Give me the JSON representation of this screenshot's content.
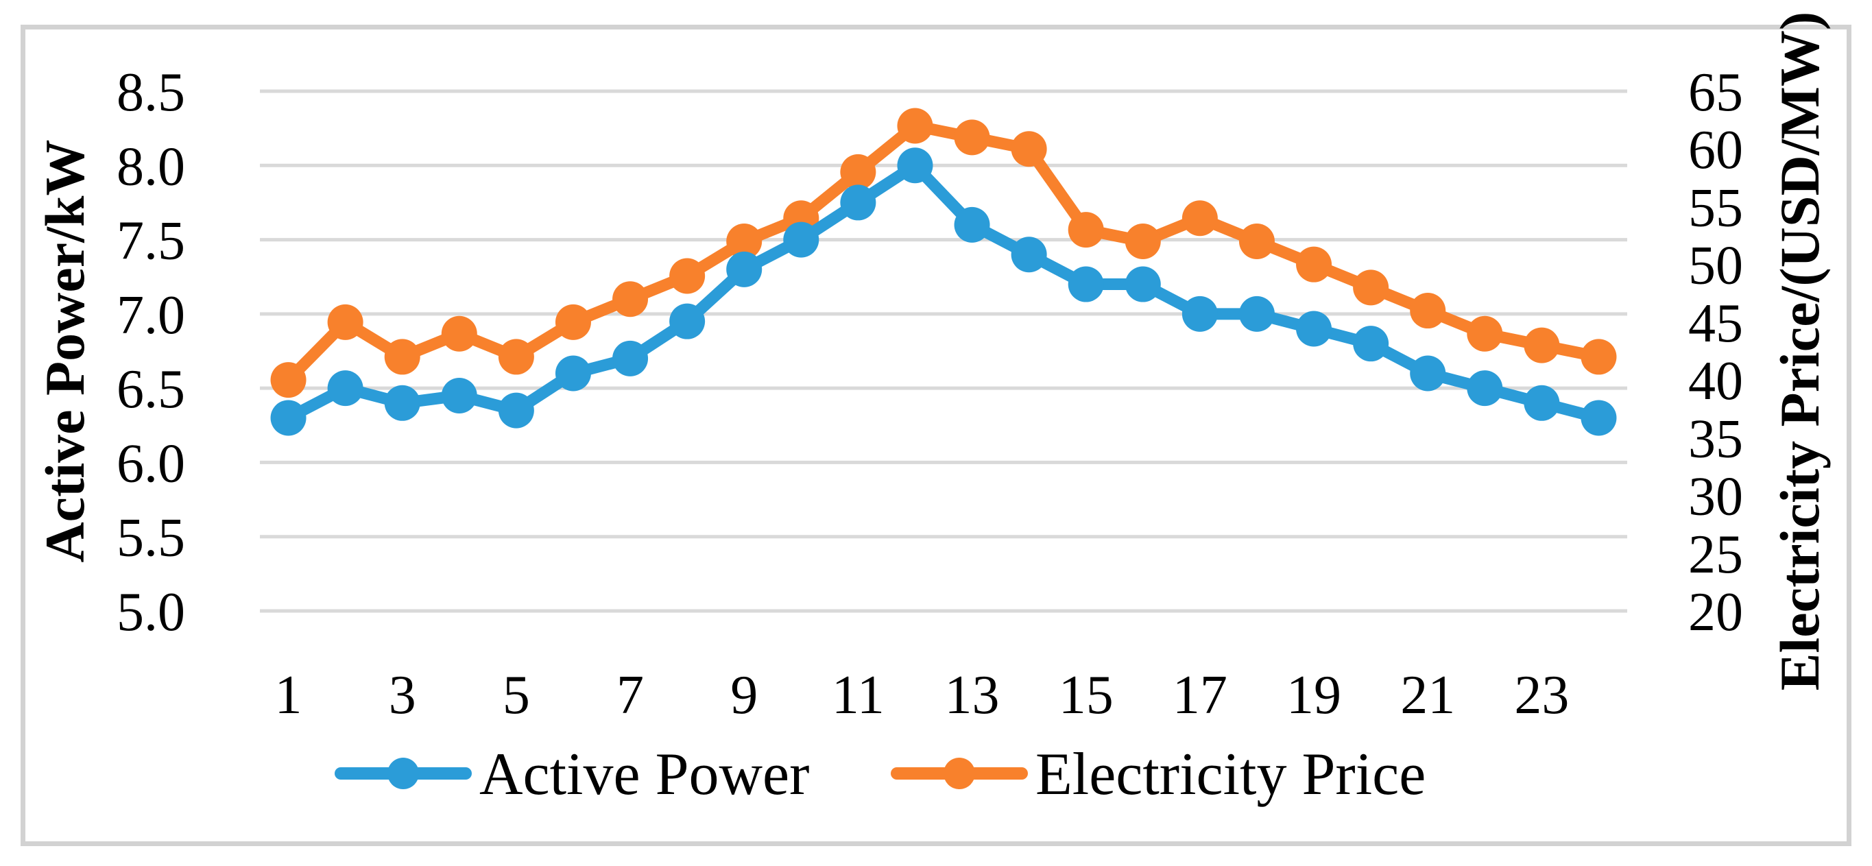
{
  "chart_data": {
    "type": "line",
    "title": "",
    "x": [
      1,
      2,
      3,
      4,
      5,
      6,
      7,
      8,
      9,
      10,
      11,
      12,
      13,
      14,
      15,
      16,
      17,
      18,
      19,
      20,
      21,
      22,
      23,
      24
    ],
    "x_axis": {
      "tick_labels": [
        "1",
        "3",
        "5",
        "7",
        "9",
        "11",
        "13",
        "15",
        "17",
        "19",
        "21",
        "23"
      ],
      "tick_values": [
        1,
        3,
        5,
        7,
        9,
        11,
        13,
        15,
        17,
        19,
        21,
        23
      ]
    },
    "left_axis": {
      "title": "Active Power/kW",
      "min": 5.0,
      "max": 8.5,
      "step": 0.5,
      "tick_labels": [
        "8.5",
        "8.0",
        "7.5",
        "7.0",
        "6.5",
        "6.0",
        "5.5",
        "5.0"
      ]
    },
    "right_axis": {
      "title": "Electricity Price/(USD/MW)",
      "min": 20,
      "max": 65,
      "step": 5,
      "tick_labels": [
        "65",
        "60",
        "55",
        "50",
        "45",
        "40",
        "35",
        "30",
        "25",
        "20"
      ]
    },
    "series": [
      {
        "name": "Active Power",
        "axis": "left",
        "color": "#2b9cd8",
        "values": [
          6.3,
          6.5,
          6.4,
          6.45,
          6.35,
          6.6,
          6.7,
          6.95,
          7.3,
          7.5,
          7.75,
          8.0,
          7.6,
          7.4,
          7.2,
          7.2,
          7.0,
          7.0,
          6.9,
          6.8,
          6.6,
          6.5,
          6.4,
          6.3
        ]
      },
      {
        "name": "Electricity Price",
        "axis": "right",
        "color": "#f8812c",
        "values": [
          40,
          45,
          42,
          44,
          42,
          45,
          47,
          49,
          52,
          54,
          58,
          62,
          61,
          60,
          53,
          52,
          54,
          52,
          50,
          48,
          46,
          44,
          43,
          42
        ]
      }
    ],
    "legend": {
      "position": "bottom",
      "items": [
        "Active Power",
        "Electricity Price"
      ]
    },
    "grid": "horizontal",
    "colors": {
      "gridline": "#d9d9d9",
      "frame": "#d2d2d2",
      "active_power": "#2b9cd8",
      "electricity_price": "#f8812c"
    }
  }
}
